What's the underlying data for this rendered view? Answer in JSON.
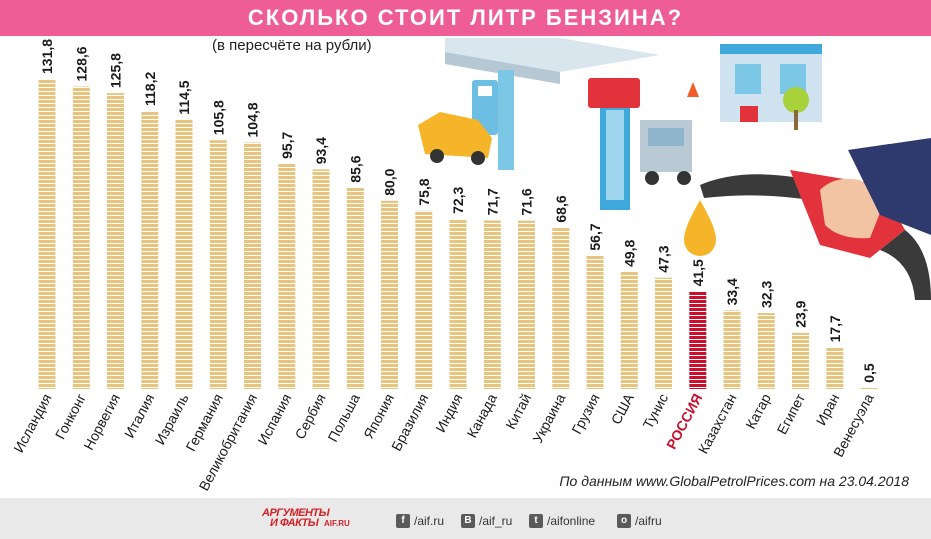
{
  "header": {
    "title": "СКОЛЬКО СТОИТ ЛИТР БЕНЗИНА?",
    "subtitle": "(в пересчёте на рубли)"
  },
  "source": "По данным www.GlobalPetrolPrices.com на 23.04.2018",
  "footer": {
    "logo": {
      "line1": "АРГУМЕНТЫ",
      "line2": "И ФАКТЫ",
      "line3": "AIF.RU"
    },
    "social": [
      {
        "icon": "facebook-icon",
        "glyph": "f",
        "label": "/aif.ru"
      },
      {
        "icon": "vk-icon",
        "glyph": "B",
        "label": "/aif_ru"
      },
      {
        "icon": "twitter-icon",
        "glyph": "t",
        "label": "/aifonline"
      },
      {
        "icon": "odnoklassniki-icon",
        "glyph": "о",
        "label": "/aifru"
      }
    ]
  },
  "colors": {
    "title_band": "#ef5d96",
    "bar": "#e8c57e",
    "bar_highlight": "#c8102e",
    "label_highlight": "#c8102e"
  },
  "chart_data": {
    "type": "bar",
    "title": "СКОЛЬКО СТОИТ ЛИТР БЕНЗИНА?",
    "subtitle": "(в пересчёте на рубли)",
    "xlabel": "",
    "ylabel": "",
    "ylim": [
      0,
      131.8
    ],
    "grid": false,
    "highlight": "РОССИЯ",
    "categories": [
      "Исландия",
      "Гонконг",
      "Норвегия",
      "Италия",
      "Израиль",
      "Германия",
      "Великобритания",
      "Испания",
      "Сербия",
      "Польша",
      "Япония",
      "Бразилия",
      "Индия",
      "Канада",
      "Китай",
      "Украина",
      "Грузия",
      "США",
      "Тунис",
      "РОССИЯ",
      "Казахстан",
      "Катар",
      "Египет",
      "Иран",
      "Венесуэла"
    ],
    "values": [
      131.8,
      128.6,
      125.8,
      118.2,
      114.5,
      105.8,
      104.8,
      95.7,
      93.4,
      85.6,
      80.0,
      75.8,
      72.3,
      71.7,
      71.6,
      68.6,
      56.7,
      49.8,
      47.3,
      41.5,
      33.4,
      32.3,
      23.9,
      17.7,
      0.5
    ],
    "value_labels": [
      "131,8",
      "128,6",
      "125,8",
      "118,2",
      "114,5",
      "105,8",
      "104,8",
      "95,7",
      "93,4",
      "85,6",
      "80,0",
      "75,8",
      "72,3",
      "71,7",
      "71,6",
      "68,6",
      "56,7",
      "49,8",
      "47,3",
      "41,5",
      "33,4",
      "32,3",
      "23,9",
      "17,7",
      "0,5"
    ]
  }
}
